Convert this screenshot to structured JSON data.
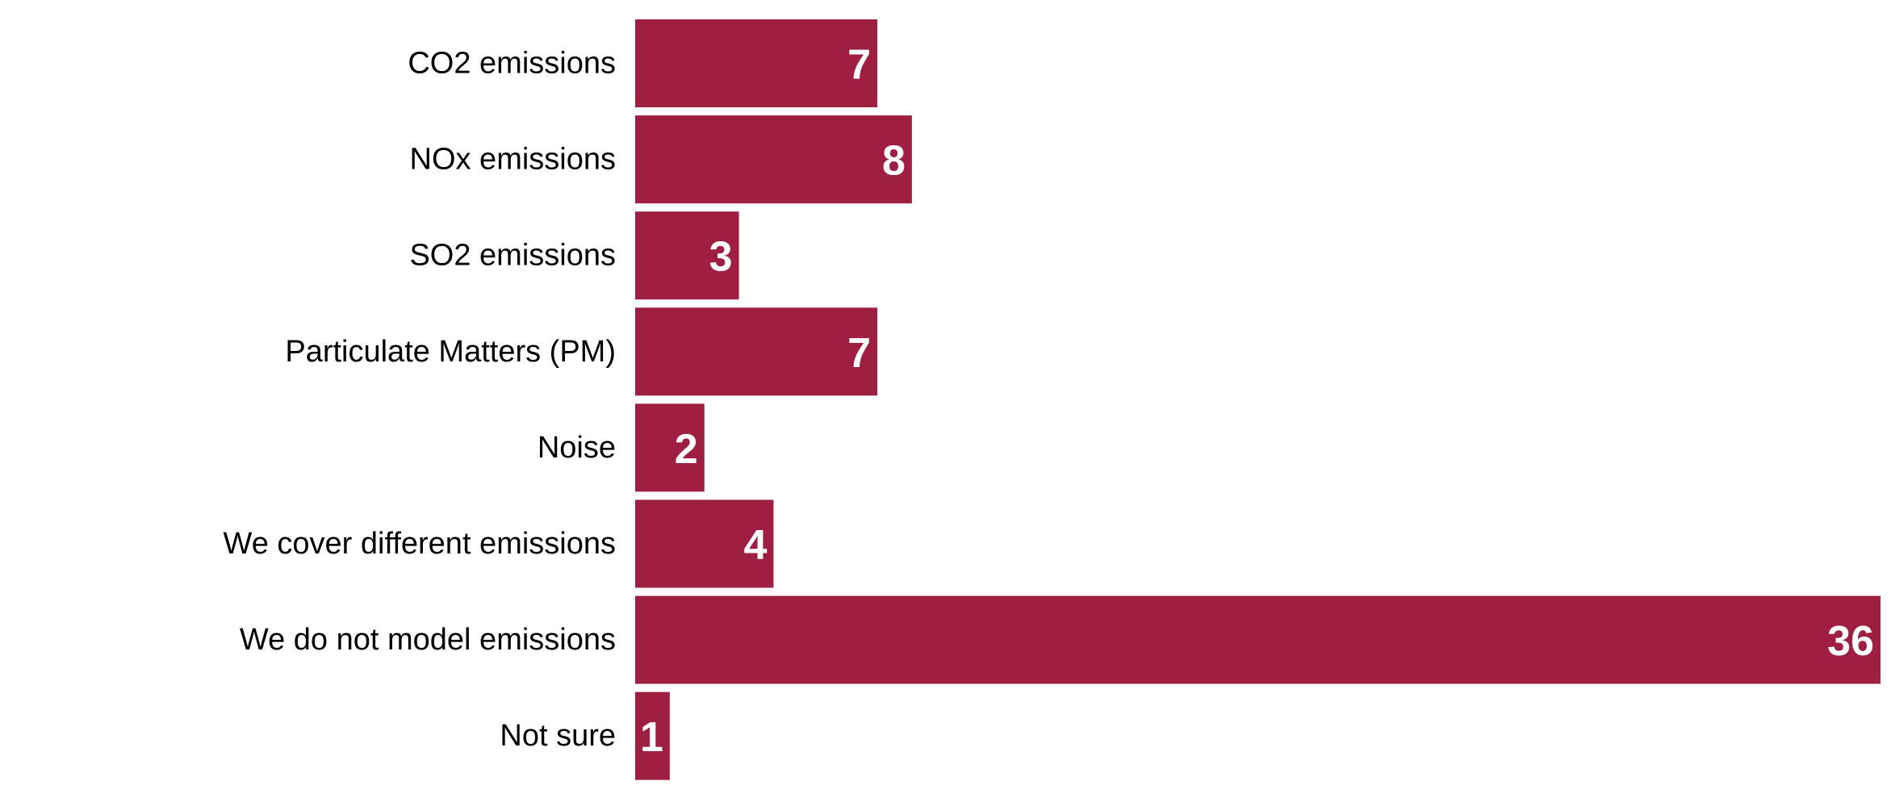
{
  "chart_data": {
    "type": "bar",
    "orientation": "horizontal",
    "categories": [
      "CO2 emissions",
      "NOx emissions",
      "SO2 emissions",
      "Particulate Matters (PM)",
      "Noise",
      "We cover different emissions",
      "We do not model emissions",
      "Not sure"
    ],
    "values": [
      7,
      8,
      3,
      7,
      2,
      4,
      36,
      1
    ],
    "title": "",
    "xlabel": "",
    "ylabel": "",
    "xlim": [
      0,
      36
    ],
    "grid": false,
    "legend": "none",
    "data_labels": "inside-end",
    "bar_color": "#9E1F42",
    "label_color": "#FFFFFF"
  }
}
